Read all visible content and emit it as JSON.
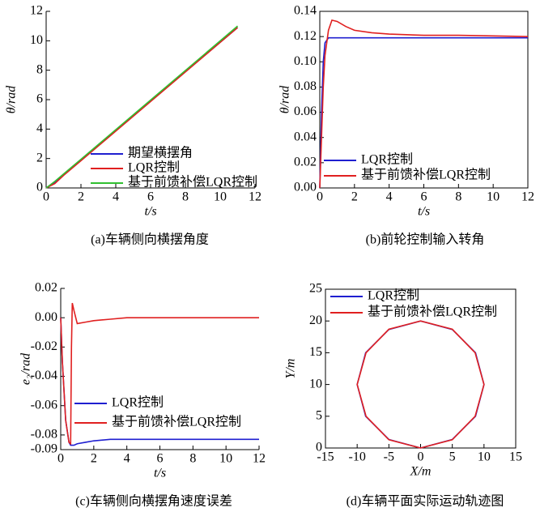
{
  "chart_data": [
    {
      "type": "line",
      "caption": "(a)车辆侧向横摆角度",
      "xlabel": "t/s",
      "ylabel": "θ/rad",
      "box": false,
      "x": [
        0,
        0.5,
        1,
        2,
        11
      ],
      "series": [
        {
          "name": "期望横摆角",
          "color": "#1f1fd0",
          "values": [
            0,
            0.4,
            0.9,
            1.9,
            10.9
          ]
        },
        {
          "name": "LQR控制",
          "color": "#e02020",
          "values": [
            0,
            0.3,
            0.85,
            1.85,
            10.9
          ]
        },
        {
          "name": "基于前馈补偿LQR控制",
          "color": "#30c030",
          "values": [
            0,
            0.45,
            0.95,
            1.95,
            11
          ]
        }
      ],
      "xlim": [
        0,
        12
      ],
      "ylim": [
        0,
        12
      ],
      "xticks": [
        0,
        2,
        4,
        6,
        8,
        10,
        12
      ],
      "yticks": [
        0,
        2,
        4,
        6,
        8,
        10,
        12
      ]
    },
    {
      "type": "line",
      "caption": "(b)前轮控制输入转角",
      "xlabel": "t/s",
      "ylabel": "θ/rad",
      "box": true,
      "x": [
        0,
        0.1,
        0.2,
        0.3,
        0.5,
        0.7,
        1,
        1.5,
        2,
        3,
        4,
        6,
        8,
        12
      ],
      "series": [
        {
          "name": "LQR控制",
          "color": "#1f1fd0",
          "values": [
            0,
            0.06,
            0.1,
            0.115,
            0.119,
            0.119,
            0.119,
            0.119,
            0.119,
            0.119,
            0.119,
            0.119,
            0.119,
            0.119
          ]
        },
        {
          "name": "基于前馈补偿LQR控制",
          "color": "#e02020",
          "values": [
            0,
            0.04,
            0.08,
            0.105,
            0.125,
            0.133,
            0.132,
            0.128,
            0.125,
            0.123,
            0.122,
            0.121,
            0.121,
            0.12
          ]
        }
      ],
      "xlim": [
        0,
        12
      ],
      "ylim": [
        0,
        0.14
      ],
      "xticks": [
        0,
        2,
        4,
        6,
        8,
        10,
        12
      ],
      "yticks": [
        {
          "value": 0,
          "label": "0.00"
        },
        0.02,
        0.04,
        0.06,
        0.08,
        {
          "value": 0.1,
          "label": "0.10"
        },
        0.12,
        0.14
      ]
    },
    {
      "type": "line",
      "caption": "(c)车辆侧向横摆角速度误差",
      "xlabel": "t/s",
      "ylabel": "e₂/rad",
      "box": false,
      "x": [
        0,
        0.1,
        0.3,
        0.5,
        0.6,
        0.65,
        0.7,
        0.8,
        1,
        1.5,
        2,
        3,
        4,
        6,
        12
      ],
      "series": [
        {
          "name": "LQR控制",
          "color": "#1f1fd0",
          "values": [
            0,
            -0.03,
            -0.07,
            -0.085,
            -0.087,
            -0.087,
            -0.087,
            -0.087,
            -0.086,
            -0.085,
            -0.084,
            -0.083,
            -0.083,
            -0.083,
            -0.083
          ]
        },
        {
          "name": "基于前馈补偿LQR控制",
          "color": "#e02020",
          "values": [
            0,
            -0.03,
            -0.07,
            -0.085,
            -0.086,
            -0.02,
            0.01,
            0.005,
            -0.004,
            -0.003,
            -0.002,
            -0.001,
            0,
            0,
            0
          ]
        }
      ],
      "xlim": [
        0,
        12
      ],
      "ylim": [
        -0.09,
        0.02
      ],
      "xticks": [
        0,
        2,
        4,
        6,
        8,
        10,
        12
      ],
      "yticks": [
        0.02,
        {
          "value": 0,
          "label": "0.00"
        },
        -0.02,
        -0.04,
        -0.06,
        -0.08,
        -0.09
      ]
    },
    {
      "type": "line",
      "caption": "(d)车辆平面实际运动轨迹图",
      "xlabel": "X/m",
      "ylabel": "Y/m",
      "box": true,
      "series": [
        {
          "name": "LQR控制",
          "color": "#1f1fd0",
          "x": [
            0,
            5,
            8.66,
            10,
            8.66,
            5,
            0,
            -5,
            -8.66,
            -10,
            -8.66,
            -5,
            0
          ],
          "values": [
            0,
            1.34,
            5,
            10,
            15,
            18.66,
            20,
            18.66,
            15,
            10,
            5,
            1.34,
            0
          ]
        },
        {
          "name": "基于前馈补偿LQR控制",
          "color": "#e02020",
          "x": [
            0,
            5,
            8.6,
            10,
            8.6,
            5,
            0,
            -5,
            -8.6,
            -10,
            -8.6,
            -5,
            0
          ],
          "values": [
            0,
            1.3,
            5,
            10,
            15,
            18.7,
            20,
            18.7,
            15,
            10,
            5,
            1.3,
            0
          ]
        }
      ],
      "xlim": [
        -15,
        15
      ],
      "ylim": [
        0,
        25
      ],
      "xticks": [
        -15,
        -10,
        -5,
        0,
        5,
        10,
        15
      ],
      "yticks": [
        0,
        5,
        10,
        15,
        20,
        25
      ]
    }
  ]
}
